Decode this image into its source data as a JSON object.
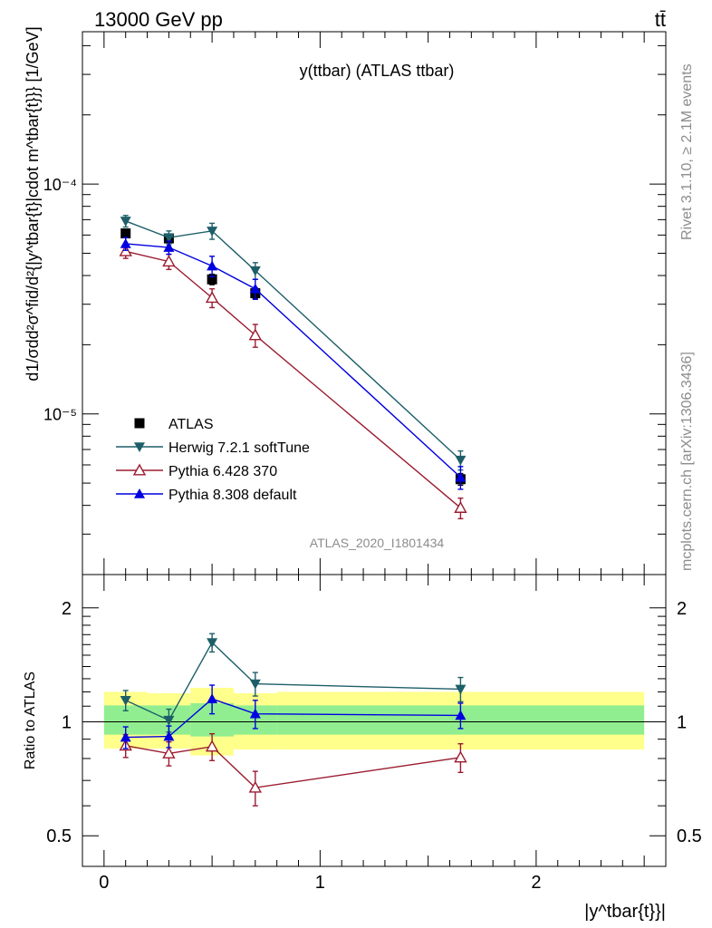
{
  "header": {
    "left": "13000 GeV pp",
    "right": "tt̄"
  },
  "side_labels": {
    "rivet": "Rivet 3.1.10, ≥ 2.1M events",
    "mcplots": "mcplots.cern.ch [arXiv:1306.3436]"
  },
  "chart_data": [
    {
      "type": "line",
      "title": "y(ttbar) (ATLAS ttbar)",
      "analysis_label": "ATLAS_2020_I1801434",
      "ylabel": "d1/σdd²σ^fid/d²{|y^tbar{t}|cdot m^tbar{t}}} [1/GeV]",
      "yscale": "log",
      "ylim": [
        2e-06,
        0.00046
      ],
      "xlim": [
        -0.1,
        2.6
      ],
      "yticks": [
        {
          "value": 1e-05,
          "label": "10⁻⁵"
        },
        {
          "value": 0.0001,
          "label": "10⁻⁴"
        }
      ],
      "legend_position": "bottom-left",
      "series": [
        {
          "name": "ATLAS",
          "color": "#000000",
          "marker": "square",
          "x": [
            0.1,
            0.3,
            0.5,
            0.7,
            1.65
          ],
          "y": [
            6.1e-05,
            5.8e-05,
            3.85e-05,
            3.35e-05,
            5.2e-06
          ],
          "err": [
            2.5e-06,
            2.5e-06,
            2e-06,
            1.8e-06,
            3e-07
          ]
        },
        {
          "name": "Herwig 7.2.1 softTune",
          "color": "#1d5f68",
          "marker": "triangle-down",
          "x": [
            0.1,
            0.3,
            0.5,
            0.7,
            1.65
          ],
          "y": [
            6.9e-05,
            5.85e-05,
            6.25e-05,
            4.2e-05,
            6.3e-06
          ],
          "err": [
            4e-06,
            4e-06,
            5e-06,
            3.5e-06,
            6e-07
          ]
        },
        {
          "name": "Pythia 6.428 370",
          "color": "#9b1b30",
          "marker": "triangle-open",
          "x": [
            0.1,
            0.3,
            0.5,
            0.7,
            1.65
          ],
          "y": [
            5.1e-05,
            4.6e-05,
            3.2e-05,
            2.2e-05,
            3.9e-06
          ],
          "err": [
            3.5e-06,
            3.5e-06,
            3e-06,
            2.5e-06,
            4e-07
          ]
        },
        {
          "name": "Pythia 8.308 default",
          "color": "#0000e0",
          "marker": "triangle-up",
          "x": [
            0.1,
            0.3,
            0.5,
            0.7,
            1.65
          ],
          "y": [
            5.5e-05,
            5.3e-05,
            4.4e-05,
            3.5e-05,
            5.3e-06
          ],
          "err": [
            3.5e-06,
            3.5e-06,
            4.5e-06,
            3.5e-06,
            6e-07
          ]
        }
      ]
    },
    {
      "type": "line",
      "ylabel": "Ratio to ATLAS",
      "xlabel": "|y^tbar{t}}|",
      "yscale": "log",
      "ylim": [
        0.415,
        2.45
      ],
      "xlim": [
        -0.1,
        2.6
      ],
      "yticks": [
        {
          "value": 0.5,
          "label": "0.5"
        },
        {
          "value": 1,
          "label": "1"
        },
        {
          "value": 2,
          "label": "2"
        }
      ],
      "xticks": [
        {
          "value": 0,
          "label": "0"
        },
        {
          "value": 1,
          "label": "1"
        },
        {
          "value": 2,
          "label": "2"
        }
      ],
      "bands": [
        {
          "x0": 0.0,
          "x1": 0.2,
          "stat": [
            0.925,
            1.105
          ],
          "total": [
            0.85,
            1.2
          ]
        },
        {
          "x0": 0.2,
          "x1": 0.4,
          "stat": [
            0.925,
            1.105
          ],
          "total": [
            0.85,
            1.19
          ]
        },
        {
          "x0": 0.4,
          "x1": 0.6,
          "stat": [
            0.915,
            1.12
          ],
          "total": [
            0.815,
            1.23
          ]
        },
        {
          "x0": 0.6,
          "x1": 0.8,
          "stat": [
            0.925,
            1.105
          ],
          "total": [
            0.845,
            1.19
          ]
        },
        {
          "x0": 0.8,
          "x1": 2.5,
          "stat": [
            0.925,
            1.105
          ],
          "total": [
            0.845,
            1.2
          ]
        }
      ],
      "band_colors": {
        "stat": "#90ee90",
        "total": "#ffff8c"
      },
      "series": [
        {
          "name": "Herwig 7.2.1 softTune",
          "color": "#1d5f68",
          "marker": "triangle-down",
          "x": [
            0.1,
            0.3,
            0.5,
            0.7,
            1.65
          ],
          "y": [
            1.14,
            1.01,
            1.62,
            1.26,
            1.22
          ],
          "err": [
            0.07,
            0.07,
            0.09,
            0.09,
            0.09
          ]
        },
        {
          "name": "Pythia 6.428 370",
          "color": "#9b1b30",
          "marker": "triangle-open",
          "x": [
            0.1,
            0.3,
            0.5,
            0.7,
            1.65
          ],
          "y": [
            0.865,
            0.825,
            0.86,
            0.67,
            0.805
          ],
          "err": [
            0.06,
            0.06,
            0.07,
            0.07,
            0.07
          ]
        },
        {
          "name": "Pythia 8.308 default",
          "color": "#0000e0",
          "marker": "triangle-up",
          "x": [
            0.1,
            0.3,
            0.5,
            0.7,
            1.65
          ],
          "y": [
            0.91,
            0.915,
            1.15,
            1.05,
            1.04
          ],
          "err": [
            0.06,
            0.06,
            0.1,
            0.09,
            0.08
          ]
        }
      ]
    }
  ]
}
